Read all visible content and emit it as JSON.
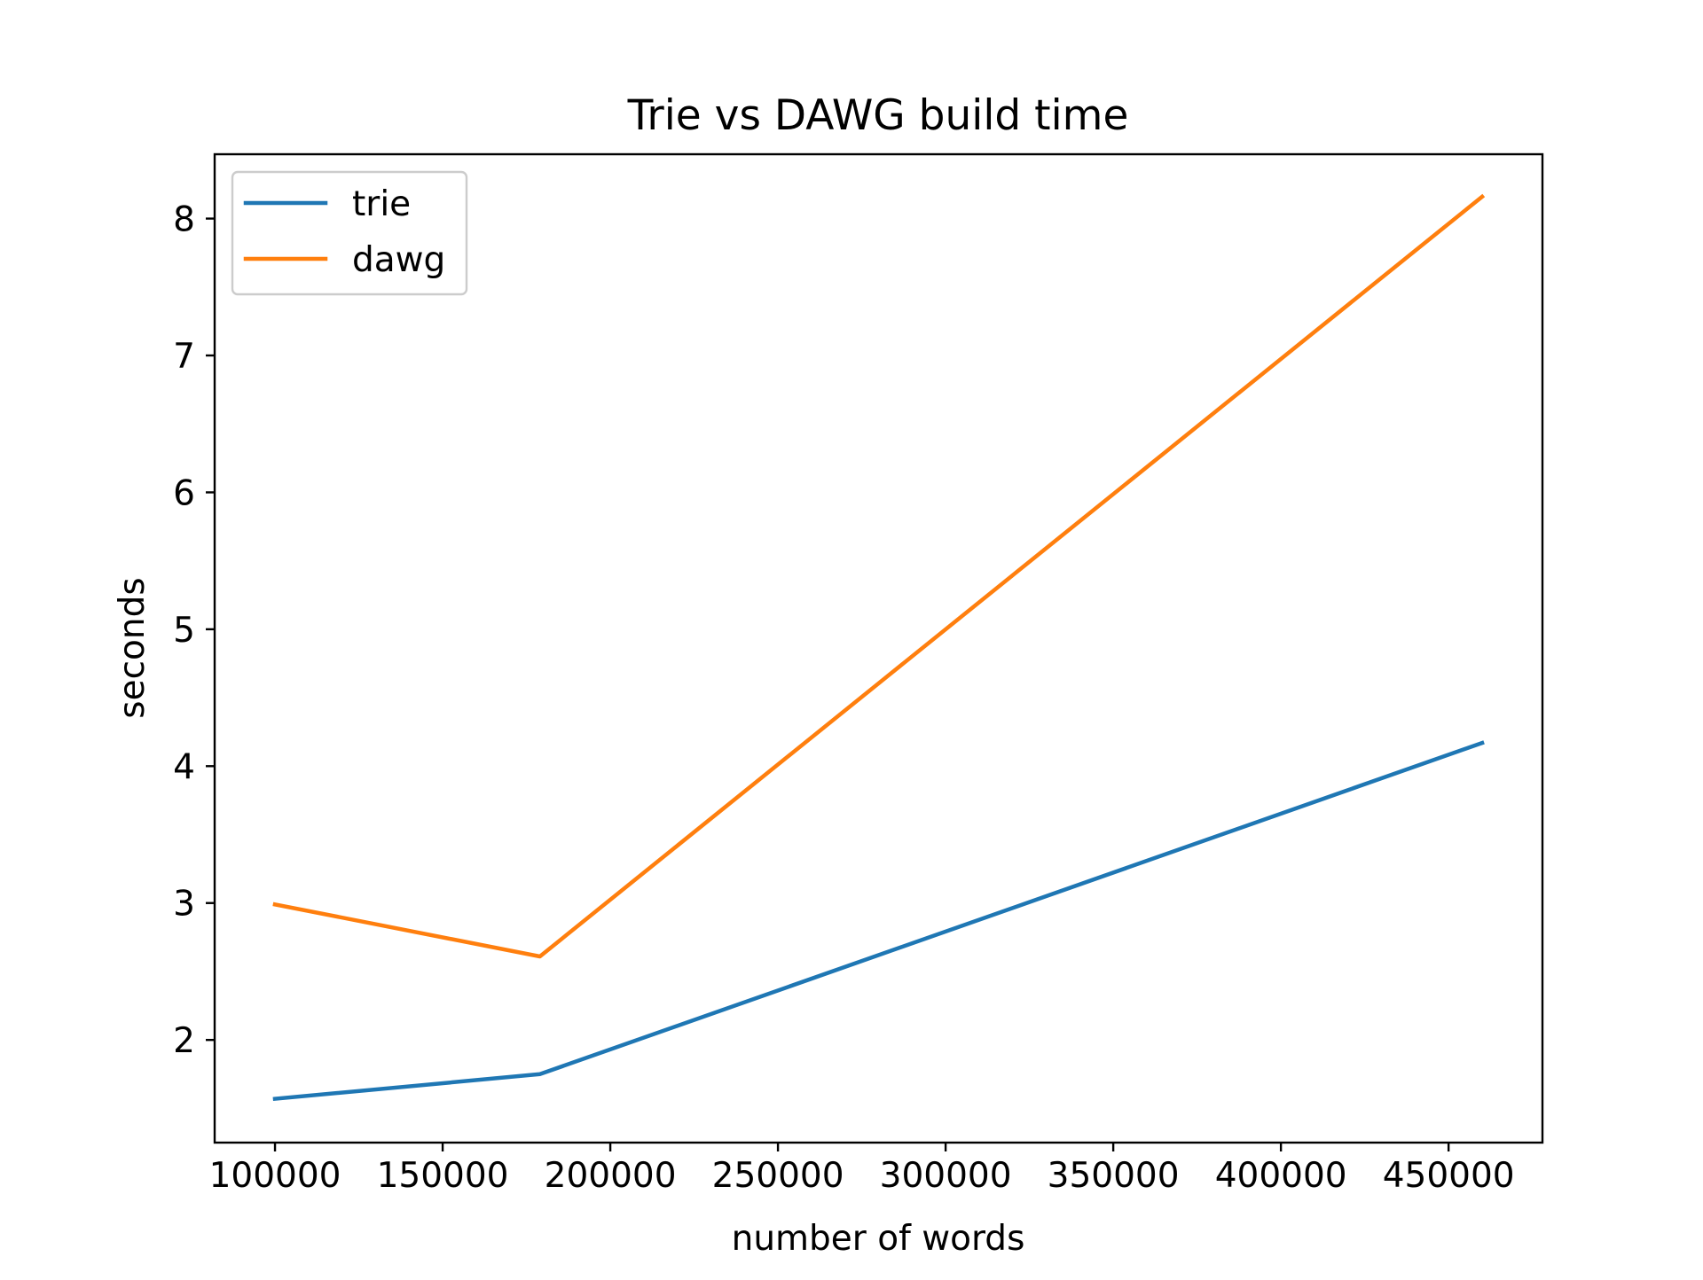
{
  "chart_data": {
    "type": "line",
    "title": "Trie vs DAWG build time",
    "xlabel": "number of words",
    "ylabel": "seconds",
    "xlim": [
      82000,
      478000
    ],
    "ylim": [
      1.25,
      8.47
    ],
    "xticks": [
      100000,
      150000,
      200000,
      250000,
      300000,
      350000,
      400000,
      450000
    ],
    "xtick_labels": [
      "100000",
      "150000",
      "200000",
      "250000",
      "300000",
      "350000",
      "400000",
      "450000"
    ],
    "yticks": [
      2,
      3,
      4,
      5,
      6,
      7,
      8
    ],
    "ytick_labels": [
      "2",
      "3",
      "4",
      "5",
      "6",
      "7",
      "8"
    ],
    "grid": false,
    "legend_position": "upper-left",
    "series": [
      {
        "name": "trie",
        "color": "#1f77b4",
        "x": [
          100000,
          179000,
          460000
        ],
        "y": [
          1.57,
          1.75,
          4.17
        ]
      },
      {
        "name": "dawg",
        "color": "#ff7f0e",
        "x": [
          100000,
          179000,
          460000
        ],
        "y": [
          2.99,
          2.61,
          8.16
        ]
      }
    ]
  }
}
